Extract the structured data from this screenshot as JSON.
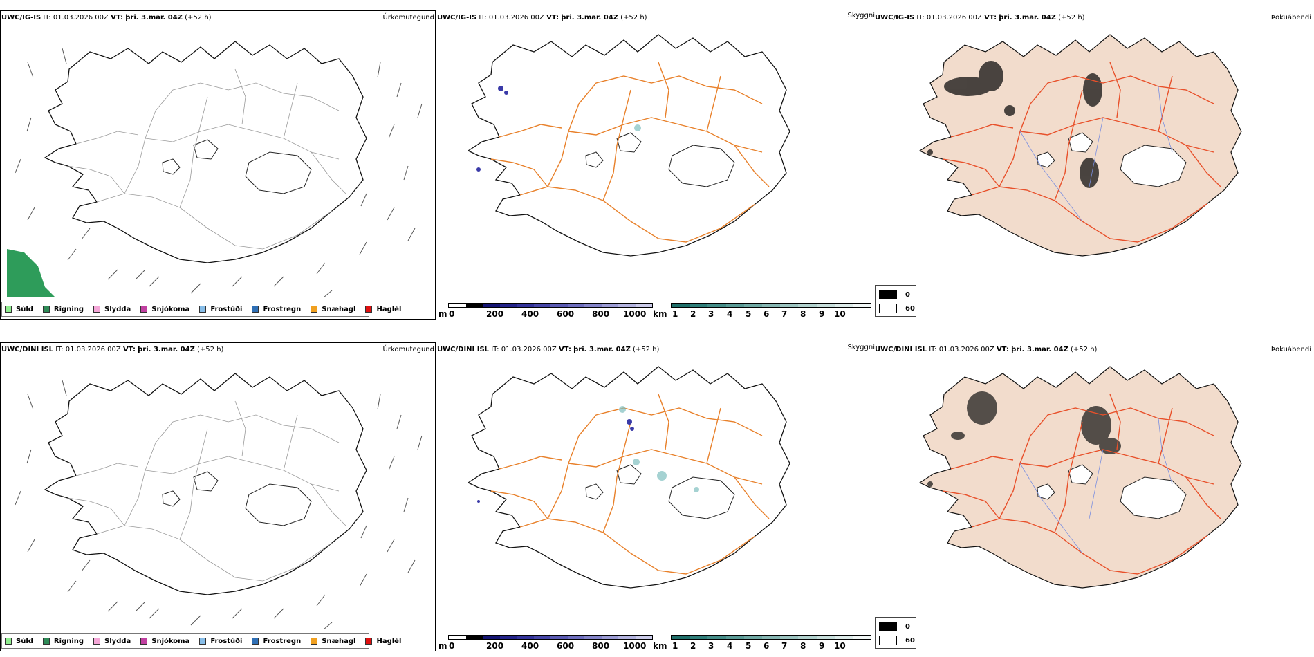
{
  "rows": [
    {
      "model": "UWC/IG-IS",
      "it_label": "IT:",
      "it_value": "01.03.2026 00Z",
      "vt_label": "VT:",
      "vt_value": "þri. 3.mar. 04Z",
      "lead": "(+52 h)"
    },
    {
      "model": "UWC/DINI ISL",
      "it_label": "IT:",
      "it_value": "01.03.2026 00Z",
      "vt_label": "VT:",
      "vt_value": "þri. 3.mar. 04Z",
      "lead": "(+52 h)"
    }
  ],
  "panel_titles": {
    "precip_type": "Úrkomutegund",
    "visibility": "Skyggni",
    "fog": "Þokuábendi"
  },
  "precip_legend": [
    {
      "label": "Súld",
      "color": "#90ee90"
    },
    {
      "label": "Rigning",
      "color": "#2e8b57"
    },
    {
      "label": "Slydda",
      "color": "#f4a6d7"
    },
    {
      "label": "Snjókoma",
      "color": "#c040a0"
    },
    {
      "label": "Frostúði",
      "color": "#87bde8"
    },
    {
      "label": "Frostregn",
      "color": "#2f6fb5"
    },
    {
      "label": "Snæhagl",
      "color": "#f0a020"
    },
    {
      "label": "Haglél",
      "color": "#e01010"
    }
  ],
  "height_colorbar": {
    "unit": "m",
    "ticks": [
      "0",
      "200",
      "400",
      "600",
      "800",
      "1000"
    ],
    "colors": [
      "#ffffff",
      "#000000",
      "#141473",
      "#23238a",
      "#33339b",
      "#4646a8",
      "#5a5ab3",
      "#6e6ebf",
      "#8484c9",
      "#9c9cd5",
      "#b4b4e0",
      "#ccccea"
    ]
  },
  "visibility_colorbar": {
    "unit": "km",
    "ticks": [
      "1",
      "2",
      "3",
      "4",
      "5",
      "6",
      "7",
      "8",
      "9",
      "10"
    ],
    "colors": [
      "#1f6f6a",
      "#2f7f7a",
      "#448d88",
      "#5a9b96",
      "#70a9a4",
      "#86b6b2",
      "#9cc4c0",
      "#b2d2ce",
      "#c8dfdc",
      "#deecea",
      "#f2f8f7"
    ]
  },
  "fog_key": [
    {
      "label": "0",
      "color": "#000000"
    },
    {
      "label": "60",
      "color": "#ffffff"
    }
  ],
  "colors": {
    "rain_area": "#2e9c5a",
    "roads": "#e8802a",
    "fog_land": "#f2dccc",
    "fog_roads": "#e8502a",
    "rivers": "#7a8fe0"
  }
}
